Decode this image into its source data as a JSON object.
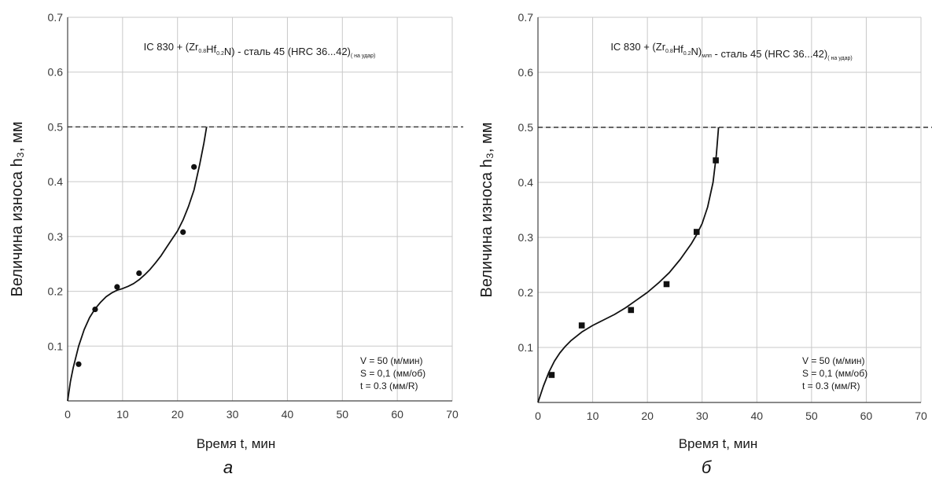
{
  "chart_data": [
    {
      "type": "scatter",
      "panel_label": "а",
      "title_parts": {
        "main1": "IC 830 + (Zr",
        "sub1": "0.8",
        "main2": "Hf",
        "sub2": "0.2",
        "main3": "N) - сталь 45 (HRC 36...42)",
        "sub3": "( на удар)"
      },
      "xlabel": "Время t, мин",
      "ylabel": "Величина износа h₃, мм",
      "xlim": [
        0,
        70
      ],
      "ylim": [
        0,
        0.7
      ],
      "x_ticks": [
        "0",
        "10",
        "20",
        "30",
        "40",
        "50",
        "60",
        "70"
      ],
      "y_ticks": [
        "0.1",
        "0.2",
        "0.3",
        "0.4",
        "0.5",
        "0.6",
        "0.7"
      ],
      "grid": true,
      "reference_line": {
        "y": 0.5,
        "style": "dashed"
      },
      "marker": "circle",
      "points": {
        "x": [
          2.0,
          5.0,
          9.0,
          13.0,
          21.0,
          23.0
        ],
        "y": [
          0.067,
          0.167,
          0.208,
          0.233,
          0.308,
          0.427
        ]
      },
      "fit_curve": {
        "x": [
          0,
          0.5,
          1,
          2,
          3,
          4,
          5,
          6,
          7,
          8,
          9,
          10,
          11,
          12,
          13,
          14,
          15,
          16,
          17,
          18,
          19,
          20,
          21,
          22,
          23,
          24,
          24.8,
          25.3
        ],
        "y": [
          0,
          0.035,
          0.06,
          0.1,
          0.13,
          0.152,
          0.168,
          0.18,
          0.19,
          0.197,
          0.202,
          0.205,
          0.209,
          0.214,
          0.221,
          0.23,
          0.24,
          0.252,
          0.265,
          0.28,
          0.295,
          0.31,
          0.33,
          0.355,
          0.385,
          0.43,
          0.47,
          0.5
        ]
      },
      "annotations": [
        "V = 50 (м/мин)",
        "S = 0,1  (мм/об)",
        "t = 0.3   (мм/R)"
      ]
    },
    {
      "type": "scatter",
      "panel_label": "б",
      "title_parts": {
        "main1": "IC 830 + (Zr",
        "sub1": "0.8",
        "main2": "Hf",
        "sub2": "0.2",
        "main3": "N)",
        "sub3a": "млп",
        "main4": " - сталь 45 (HRC 36...42)",
        "sub3": "( на удар)"
      },
      "xlabel": "Время t, мин",
      "ylabel": "Величина износа h₃, мм",
      "xlim": [
        0,
        70
      ],
      "ylim": [
        0,
        0.7
      ],
      "x_ticks": [
        "0",
        "10",
        "20",
        "30",
        "40",
        "50",
        "60",
        "70"
      ],
      "y_ticks": [
        "0.1",
        "0.2",
        "0.3",
        "0.4",
        "0.5",
        "0.6",
        "0.7"
      ],
      "grid": true,
      "reference_line": {
        "y": 0.5,
        "style": "dashed"
      },
      "marker": "square",
      "points": {
        "x": [
          2.5,
          8.0,
          17.0,
          23.5,
          29.0,
          32.5
        ],
        "y": [
          0.05,
          0.14,
          0.168,
          0.215,
          0.31,
          0.44
        ]
      },
      "fit_curve": {
        "x": [
          0,
          1,
          2,
          3,
          4,
          5,
          6,
          8,
          10,
          12,
          14,
          16,
          18,
          20,
          22,
          24,
          26,
          28,
          29,
          30,
          31,
          32,
          32.6,
          33.0
        ],
        "y": [
          0,
          0.03,
          0.055,
          0.075,
          0.09,
          0.102,
          0.112,
          0.128,
          0.14,
          0.15,
          0.16,
          0.172,
          0.186,
          0.2,
          0.217,
          0.236,
          0.26,
          0.288,
          0.305,
          0.325,
          0.355,
          0.4,
          0.45,
          0.5
        ]
      },
      "annotations": [
        "V = 50 (м/мин)",
        "S = 0,1  (мм/об)",
        "t = 0.3   (мм/R)"
      ]
    }
  ]
}
